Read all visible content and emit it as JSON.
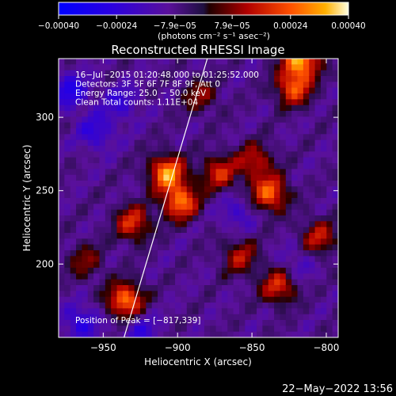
{
  "chart_data": {
    "type": "heatmap",
    "title": "Reconstructed RHESSI Image",
    "xlabel": "Heliocentric X (arcsec)",
    "ylabel": "Heliocentric Y (arcsec)",
    "xlim": [
      -980,
      -792
    ],
    "ylim": [
      150,
      340
    ],
    "xticks": [
      -950,
      -900,
      -850,
      -800
    ],
    "xtick_labels": [
      "−950",
      "−900",
      "−850",
      "−800"
    ],
    "yticks": [
      200,
      250,
      300
    ],
    "ytick_labels": [
      "200",
      "250",
      "300"
    ],
    "colorbar": {
      "range": [
        -0.0004,
        0.0004
      ],
      "ticks": [
        -0.0004,
        -0.00024,
        -7.9e-05,
        7.9e-05,
        0.00024,
        0.0004
      ],
      "tick_labels": [
        "−0.00040",
        "−0.00024",
        "−7.9e−05",
        "7.9e−05",
        "0.00024",
        "0.00040"
      ],
      "units_label": "(photons cm⁻² s⁻¹ asec⁻²)"
    },
    "info_lines": [
      "16−Jul−2015 01:20:48.000 to 01:25:52.000",
      "Detectors: 3F 5F 6F 7F 8F 9F, Att 0",
      "Energy Range: 25.0 − 50.0 keV",
      "Clean     Total counts: 1.11E+04"
    ],
    "peak_label": "Position of Peak = [−817,339]",
    "limb_line": [
      [
        -936,
        150
      ],
      [
        -880,
        340
      ]
    ],
    "bright_regions": [
      {
        "x": -907,
        "y": 262,
        "value": 0.00038
      },
      {
        "x": -898,
        "y": 242,
        "value": 0.00034
      },
      {
        "x": -935,
        "y": 175,
        "value": 0.00036
      },
      {
        "x": -930,
        "y": 228,
        "value": 0.00026
      },
      {
        "x": -817,
        "y": 339,
        "value": 0.0004
      },
      {
        "x": -822,
        "y": 320,
        "value": 0.0003
      },
      {
        "x": -838,
        "y": 248,
        "value": 0.00033
      },
      {
        "x": -848,
        "y": 270,
        "value": 0.00022
      },
      {
        "x": -872,
        "y": 262,
        "value": 0.00024
      },
      {
        "x": -858,
        "y": 205,
        "value": 0.0002
      },
      {
        "x": -832,
        "y": 185,
        "value": 0.00026
      },
      {
        "x": -805,
        "y": 218,
        "value": 0.00022
      },
      {
        "x": -885,
        "y": 315,
        "value": 0.00016
      },
      {
        "x": -962,
        "y": 202,
        "value": 0.00015
      }
    ],
    "dark_regions": [
      {
        "x": -972,
        "y": 318,
        "value": -0.0002
      },
      {
        "x": -955,
        "y": 290,
        "value": -0.00016
      },
      {
        "x": -938,
        "y": 310,
        "value": -0.00014
      },
      {
        "x": -965,
        "y": 160,
        "value": -0.00018
      },
      {
        "x": -925,
        "y": 155,
        "value": -0.00014
      },
      {
        "x": -860,
        "y": 235,
        "value": -0.00012
      },
      {
        "x": -820,
        "y": 200,
        "value": -0.0001
      }
    ]
  },
  "timestamp": "22−May−2022 13:56"
}
